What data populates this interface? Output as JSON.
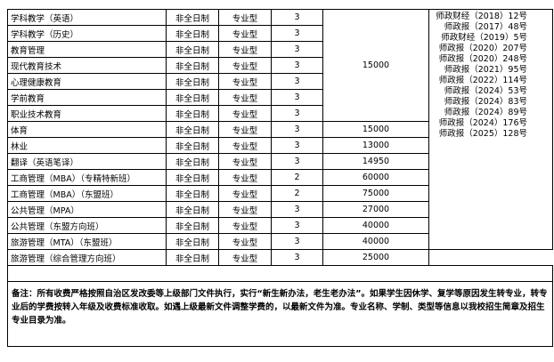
{
  "table": {
    "rows": [
      {
        "name": "学科教学（英语）",
        "mode": "非全日制",
        "level": "专业型",
        "years": 3,
        "fee": 15000
      },
      {
        "name": "学科教学（历史）",
        "mode": "非全日制",
        "level": "专业型",
        "years": 3
      },
      {
        "name": "教育管理",
        "mode": "非全日制",
        "level": "专业型",
        "years": 3
      },
      {
        "name": "现代教育技术",
        "mode": "非全日制",
        "level": "专业型",
        "years": 3
      },
      {
        "name": "心理健康教育",
        "mode": "非全日制",
        "level": "专业型",
        "years": 3
      },
      {
        "name": "学前教育",
        "mode": "非全日制",
        "level": "专业型",
        "years": 3
      },
      {
        "name": "职业技术教育",
        "mode": "非全日制",
        "level": "专业型",
        "years": 3
      },
      {
        "name": "体育",
        "mode": "非全日制",
        "level": "专业型",
        "years": 3,
        "fee": 15000
      },
      {
        "name": "林业",
        "mode": "非全日制",
        "level": "专业型",
        "years": 3,
        "fee": 13000
      },
      {
        "name": "翻译（英语笔译）",
        "mode": "非全日制",
        "level": "专业型",
        "years": 3,
        "fee": 14950
      },
      {
        "name": "工商管理（MBA）（专精特新班）",
        "mode": "非全日制",
        "level": "专业型",
        "years": 2,
        "fee": 60000
      },
      {
        "name": "工商管理（MBA）（东盟班）",
        "mode": "非全日制",
        "level": "专业型",
        "years": 2,
        "fee": 75000
      },
      {
        "name": "公共管理（MPA）",
        "mode": "非全日制",
        "level": "专业型",
        "years": 3,
        "fee": 27000
      },
      {
        "name": "公共管理（东盟方向班）",
        "mode": "非全日制",
        "level": "专业型",
        "years": 3,
        "fee": 40000
      },
      {
        "name": "旅游管理（MTA）（东盟班）",
        "mode": "非全日制",
        "level": "专业型",
        "years": 3,
        "fee": 40000
      },
      {
        "name": "旅游管理（综合管理方向班）",
        "mode": "非全日制",
        "level": "专业型",
        "years": 3,
        "fee": 25000
      }
    ],
    "documents": [
      "师政财经（2018）12号",
      "师政报（2017）48号",
      "师政财经（2019）5号",
      "师政报（2020）207号",
      "师政报（2020）248号",
      "师政报（2021）95号",
      "师政报（2022）114号",
      "师政报（2024）53号",
      "师政报（2024）83号",
      "师政报（2024）89号",
      "师政报（2024）176号",
      "师政报（2025）128号"
    ],
    "note": "备注：所有收费严格按照自治区发改委等上级部门文件执行，实行“新生新办法，老生老办法”。如果学生因休学、复学等原因发生转专业，转专业后的学费按转入年级及收费标准收取。如遇上级最新文件调整学费的，以最新文件为准。专业名称、学制、类型等信息以我校招生简章及招生专业目录为准。"
  }
}
